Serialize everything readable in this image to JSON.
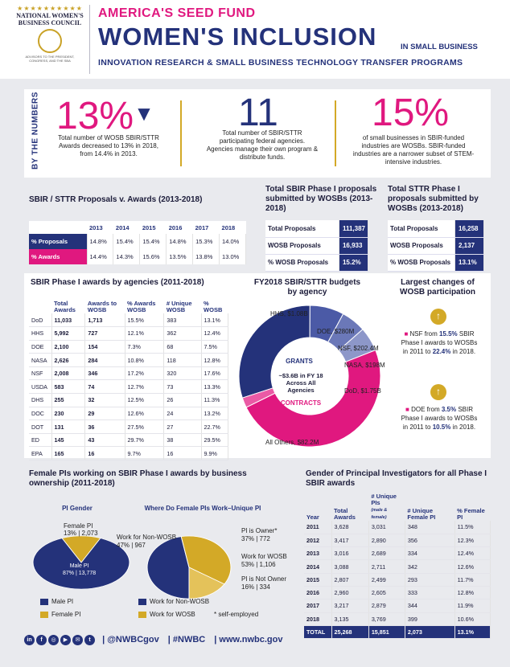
{
  "header": {
    "logo_stars": "★★★★★★★★★★",
    "logo_name": "NATIONAL WOMEN'S BUSINESS COUNCIL",
    "logo_sub": "ADVISORS TO THE PRESIDENT, CONGRESS, AND THE SBA",
    "kicker": "AMERICA'S SEED FUND",
    "title": "WOMEN'S INCLUSION",
    "title_suffix": "IN SMALL BUSINESS",
    "subtitle": "INNOVATION RESEARCH & SMALL BUSINESS TECHNOLOGY TRANSFER PROGRAMS"
  },
  "by_numbers": {
    "label": "BY THE NUMBERS",
    "stats": [
      {
        "value": "13%",
        "arrow": "▼",
        "desc": "Total number of WOSB SBIR/STTR Awards decreased to 13% in 2018, from 14.4% in 2013."
      },
      {
        "value": "11",
        "desc": "Total number of SBIR/STTR participating federal agencies. Agencies manage their own program & distribute funds."
      },
      {
        "value": "15%",
        "desc": "of small businesses in SBIR-funded industries are WOSBs. SBIR-funded industries are a narrower subset of STEM-intensive industries."
      }
    ]
  },
  "proposals_awards": {
    "title": "SBIR / STTR Proposals v. Awards (2013-2018)",
    "years": [
      "2013",
      "2014",
      "2015",
      "2016",
      "2017",
      "2018"
    ],
    "rows": [
      {
        "label": "% Proposals",
        "values": [
          "14.8%",
          "15.4%",
          "15.4%",
          "14.8%",
          "15.3%",
          "14.0%"
        ]
      },
      {
        "label": "% Awards",
        "values": [
          "14.4%",
          "14.3%",
          "15.6%",
          "13.5%",
          "13.8%",
          "13.0%"
        ]
      }
    ]
  },
  "sbir_phase1": {
    "title": "Total SBIR Phase I proposals submitted by WOSBs (2013-2018)",
    "rows": [
      {
        "label": "Total Proposals",
        "value": "111,387"
      },
      {
        "label": "WOSB Proposals",
        "value": "16,933"
      },
      {
        "label": "% WOSB Proposals",
        "value": "15.2%"
      }
    ]
  },
  "sttr_phase1": {
    "title": "Total STTR Phase I proposals submitted by WOSBs (2013-2018)",
    "rows": [
      {
        "label": "Total Proposals",
        "value": "16,258"
      },
      {
        "label": "WOSB Proposals",
        "value": "2,137"
      },
      {
        "label": "% WOSB Proposals",
        "value": "13.1%"
      }
    ]
  },
  "agencies": {
    "title": "SBIR Phase I awards by agencies (2011-2018)",
    "headers": [
      "",
      "Total Awards",
      "Awards to WOSB",
      "% Awards WOSB",
      "# Unique WOSB",
      "% WOSB"
    ],
    "rows": [
      [
        "DoD",
        "11,033",
        "1,713",
        "15.5%",
        "383",
        "13.1%"
      ],
      [
        "HHS",
        "5,992",
        "727",
        "12.1%",
        "362",
        "12.4%"
      ],
      [
        "DOE",
        "2,100",
        "154",
        "7.3%",
        "68",
        "7.5%"
      ],
      [
        "NASA",
        "2,626",
        "284",
        "10.8%",
        "118",
        "12.8%"
      ],
      [
        "NSF",
        "2,008",
        "346",
        "17.2%",
        "320",
        "17.6%"
      ],
      [
        "USDA",
        "583",
        "74",
        "12.7%",
        "73",
        "13.3%"
      ],
      [
        "DHS",
        "255",
        "32",
        "12.5%",
        "26",
        "11.3%"
      ],
      [
        "DOC",
        "230",
        "29",
        "12.6%",
        "24",
        "13.2%"
      ],
      [
        "DOT",
        "131",
        "36",
        "27.5%",
        "27",
        "22.7%"
      ],
      [
        "ED",
        "145",
        "43",
        "29.7%",
        "38",
        "29.5%"
      ],
      [
        "EPA",
        "165",
        "16",
        "9.7%",
        "16",
        "9.9%"
      ]
    ]
  },
  "budgets": {
    "title": "FY2018 SBIR/STTR budgets by agency",
    "grants_label": "GRANTS",
    "contracts_label": "CONTRACTS",
    "center_text": "~$3.6B in FY 18 Across All Agencies",
    "labels": [
      "HHS, $1.08B",
      "DOE, $280M",
      "NSF, $202.4M",
      "NASA, $198M",
      "DoD, $1.75B",
      "All Others, $82.2M"
    ]
  },
  "chart_data": {
    "type": "pie",
    "title": "FY2018 SBIR/STTR budgets by agency",
    "categories": [
      "HHS",
      "DOE",
      "NSF",
      "NASA",
      "DoD",
      "All Others"
    ],
    "values": [
      1080,
      280,
      202.4,
      198,
      1750,
      82.2
    ],
    "unit": "$M",
    "colors": [
      "#24327a",
      "#4b5aa6",
      "#6b78b8",
      "#8d97c9",
      "#e0187f",
      "#ea5aa5"
    ]
  },
  "largest_changes": {
    "title": "Largest changes of WOSB participation",
    "items": [
      {
        "arrow": "↑",
        "agency": "NSF from ",
        "from": "15.5%",
        "mid": " SBIR Phase I awards to WOSBs in 2011 to ",
        "to": "22.4%",
        "end": " in 2018."
      },
      {
        "arrow": "↑",
        "agency": "DOE from ",
        "from": "3.5%",
        "mid": " SBIR Phase I awards to WOSBs in 2011 to ",
        "to": "10.5%",
        "end": " in 2018."
      }
    ]
  },
  "female_pis": {
    "title": "Female PIs working on SBIR Phase I awards by business ownership (2011-2018)",
    "gender_title": "PI Gender",
    "work_title": "Where Do Female PIs Work–Unique PI",
    "gender": {
      "female_label": "Female PI",
      "female_value": "13% | 2,073",
      "male_label": "Male PI",
      "male_value": "87% | 13,778"
    },
    "gender_pct": [
      87,
      13
    ],
    "work_pct": [
      47,
      37,
      16
    ],
    "work": {
      "non_wosb": "Work for Non-WOSB",
      "non_wosb_value": "47% | 967",
      "owner": "PI is Owner*",
      "owner_value": "37% | 772",
      "wosb": "Work for WOSB",
      "wosb_value": "53% | 1,106",
      "not_owner": "PI is Not Owner",
      "not_owner_value": "16% | 334"
    },
    "legend": {
      "male": "Male PI",
      "female": "Female PI",
      "non_wosb": "Work for Non-WOSB",
      "wosb": "Work for WOSB",
      "note": "* self-employed"
    }
  },
  "gender_pi": {
    "title": "Gender of Principal Investigators for all Phase I SBIR awards",
    "headers": [
      "Year",
      "Total Awards",
      "# Unique PIs",
      "(male & female)",
      "# Unique Female PI",
      "% Female PI"
    ],
    "rows": [
      [
        "2011",
        "3,628",
        "3,031",
        "348",
        "11.5%"
      ],
      [
        "2012",
        "3,417",
        "2,890",
        "356",
        "12.3%"
      ],
      [
        "2013",
        "3,016",
        "2,689",
        "334",
        "12.4%"
      ],
      [
        "2014",
        "3,088",
        "2,711",
        "342",
        "12.6%"
      ],
      [
        "2015",
        "2,807",
        "2,499",
        "293",
        "11.7%"
      ],
      [
        "2016",
        "2,960",
        "2,605",
        "333",
        "12.8%"
      ],
      [
        "2017",
        "3,217",
        "2,879",
        "344",
        "11.9%"
      ],
      [
        "2018",
        "3,135",
        "3,769",
        "399",
        "10.6%"
      ]
    ],
    "total": [
      "TOTAL",
      "25,268",
      "15,851",
      "2,073",
      "13.1%"
    ]
  },
  "footer": {
    "icons": [
      "in",
      "f",
      "◎",
      "▶",
      "✉",
      "t"
    ],
    "handle": "| @NWBCgov",
    "hashtag": "| #NWBC",
    "site": "| www.nwbc.gov"
  }
}
